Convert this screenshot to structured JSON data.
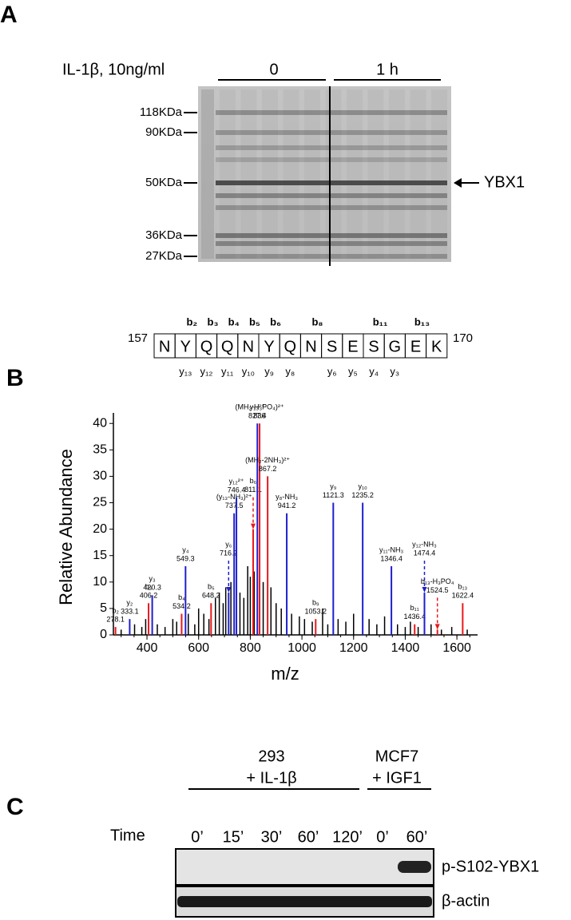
{
  "panel_a": {
    "letter": "A",
    "treatment": "IL-1β, 10ng/ml",
    "groups": [
      "0",
      "1 h"
    ],
    "markers": [
      "118KDa",
      "90KDa",
      "50KDa",
      "36KDa",
      "27KDa"
    ],
    "band_label": "YBX1"
  },
  "peptide": {
    "letter": "B",
    "start": "157",
    "end": "170",
    "residues": [
      "N",
      "Y",
      "Q",
      "Q",
      "N",
      "Y",
      "Q",
      "N",
      "S",
      "E",
      "S",
      "G",
      "E",
      "K"
    ],
    "b_ions": [
      null,
      "b₂",
      "b₃",
      "b₄",
      "b₅",
      "b₆",
      null,
      "b₈",
      null,
      null,
      "b₁₁",
      null,
      "b₁₃",
      null
    ],
    "y_ions": [
      null,
      "y₁₃",
      "y₁₂",
      "y₁₁",
      "y₁₀",
      "y₉",
      "y₈",
      null,
      "y₆",
      "y₅",
      "y₄",
      "y₃",
      null,
      null
    ]
  },
  "chart_data": {
    "type": "spectrum",
    "xlabel": "m/z",
    "ylabel": "Relative Abundance",
    "xlim": [
      270,
      1680
    ],
    "ylim": [
      0,
      42
    ],
    "xticks": [
      400,
      600,
      800,
      1000,
      1200,
      1400,
      1600
    ],
    "yticks": [
      0,
      5,
      10,
      15,
      20,
      25,
      30,
      35,
      40
    ],
    "peaks": [
      {
        "ion": "b₂",
        "x": 278.1,
        "y": 1.5,
        "color": "#e8191b"
      },
      {
        "ion": "y₂",
        "x": 333.1,
        "y": 3,
        "color": "#1f1fcc"
      },
      {
        "ion": "b₃",
        "x": 406.2,
        "y": 6,
        "color": "#e8191b"
      },
      {
        "ion": "y₃",
        "x": 420.3,
        "y": 7.5,
        "color": "#1f1fcc"
      },
      {
        "ion": "b₄",
        "x": 534.2,
        "y": 4,
        "color": "#e8191b"
      },
      {
        "ion": "y₄",
        "x": 549.3,
        "y": 13,
        "color": "#1f1fcc"
      },
      {
        "ion": "b₅",
        "x": 648.2,
        "y": 6,
        "color": "#e8191b"
      },
      {
        "ion": "y₆",
        "x": 716.2,
        "y": 8,
        "color": "#1f1fcc",
        "dashed": true
      },
      {
        "ion": "(y₁₃-NH₃)²⁺",
        "x": 737.5,
        "y": 23,
        "color": "#1f1fcc"
      },
      {
        "ion": "y₁₂²⁺",
        "x": 746.4,
        "y": 26,
        "color": "#1f1fcc"
      },
      {
        "ion": "b₆",
        "x": 811.1,
        "y": 20,
        "color": "#e8191b",
        "dashed": true
      },
      {
        "ion": "y₁₃²⁺",
        "x": 827.4,
        "y": 40,
        "color": "#1f1fcc"
      },
      {
        "ion": "(MH₂-H₃PO₄)²⁺",
        "x": 836.0,
        "y": 40,
        "color": "#e8191b"
      },
      {
        "ion": "(MH₂-2NH₃)²⁺",
        "x": 867.2,
        "y": 30,
        "color": "#e8191b"
      },
      {
        "ion": "y₈-NH₃",
        "x": 941.2,
        "y": 23,
        "color": "#1f1fcc"
      },
      {
        "ion": "b₉",
        "x": 1053.2,
        "y": 3,
        "color": "#e8191b"
      },
      {
        "ion": "y₉",
        "x": 1121.3,
        "y": 25,
        "color": "#1f1fcc"
      },
      {
        "ion": "y₁₀",
        "x": 1235.2,
        "y": 25,
        "color": "#1f1fcc"
      },
      {
        "ion": "y₁₁-NH₃",
        "x": 1346.4,
        "y": 13,
        "color": "#1f1fcc"
      },
      {
        "ion": "b₁₁",
        "x": 1436.4,
        "y": 2,
        "color": "#e8191b"
      },
      {
        "ion": "y₁₂-NH₃",
        "x": 1474.4,
        "y": 8,
        "color": "#1f1fcc",
        "dashed": true
      },
      {
        "ion": "b₁₃-H₃PO₄",
        "x": 1524.5,
        "y": 1,
        "color": "#e8191b",
        "dashed": true
      },
      {
        "ion": "b₁₃",
        "x": 1622.4,
        "y": 6,
        "color": "#e8191b"
      }
    ],
    "background": {
      "x": [
        300,
        352,
        380,
        395,
        440,
        470,
        500,
        515,
        560,
        585,
        600,
        620,
        640,
        665,
        680,
        695,
        705,
        725,
        760,
        775,
        790,
        800,
        815,
        850,
        880,
        900,
        920,
        960,
        990,
        1010,
        1040,
        1080,
        1100,
        1140,
        1170,
        1200,
        1260,
        1290,
        1320,
        1370,
        1400,
        1420,
        1450,
        1500,
        1540,
        1580,
        1640
      ],
      "values": [
        1,
        2,
        1.5,
        3,
        2,
        1.5,
        3,
        2.5,
        4,
        2,
        5,
        4,
        3,
        7,
        8,
        6,
        9,
        10,
        8,
        7,
        13,
        11,
        12,
        10,
        9,
        6,
        5,
        4,
        3.5,
        3,
        2.5,
        5,
        2,
        3,
        2.5,
        4,
        3,
        2,
        3.5,
        2,
        1.5,
        2.5,
        1.5,
        2,
        1,
        1.5,
        1
      ]
    }
  },
  "panel_c": {
    "letter": "C",
    "time_label": "Time",
    "group1": [
      "293",
      "+ IL-1β"
    ],
    "group2": [
      "MCF7",
      "+ IGF1"
    ],
    "lanes": [
      "0’",
      "15’",
      "30’",
      "60’",
      "120’",
      "0’",
      "60’"
    ],
    "rows": [
      "p-S102-YBX1",
      "β-actin"
    ]
  }
}
